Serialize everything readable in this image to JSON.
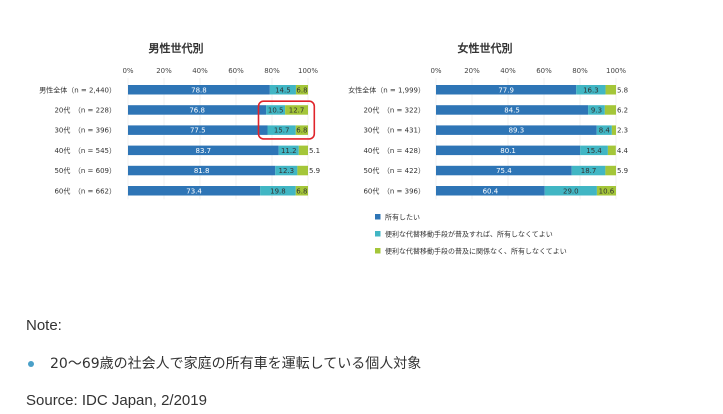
{
  "chart_data": [
    {
      "type": "bar",
      "orientation": "horizontal-stacked-percent",
      "title": "男性世代別",
      "axis_ticks": [
        "0%",
        "20%",
        "40%",
        "60%",
        "80%",
        "100%"
      ],
      "xlim": [
        0,
        100
      ],
      "categories": [
        "男性全体（n = 2,440）",
        "20代　（n = 228）",
        "30代　（n = 396）",
        "40代　（n = 545）",
        "50代　（n = 609）",
        "60代　（n = 662）"
      ],
      "series": [
        {
          "values": [
            78.8,
            76.8,
            77.5,
            83.7,
            81.8,
            73.4
          ]
        },
        {
          "values": [
            14.5,
            10.5,
            15.7,
            11.2,
            12.3,
            19.8
          ]
        },
        {
          "values": [
            6.8,
            12.7,
            6.8,
            5.1,
            5.9,
            6.8
          ]
        }
      ],
      "labels": [
        [
          "78.8",
          "14.5",
          "6.8"
        ],
        [
          "76.8",
          "10.5",
          "12.7"
        ],
        [
          "77.5",
          "15.7",
          "6.8"
        ],
        [
          "83.7",
          "11.2",
          "5.1"
        ],
        [
          "81.8",
          "12.3",
          "5.9"
        ],
        [
          "73.4",
          "19.8",
          "6.8"
        ]
      ],
      "highlighted_rows": [
        1,
        2
      ]
    },
    {
      "type": "bar",
      "orientation": "horizontal-stacked-percent",
      "title": "女性世代別",
      "axis_ticks": [
        "0%",
        "20%",
        "40%",
        "60%",
        "80%",
        "100%"
      ],
      "xlim": [
        0,
        100
      ],
      "categories": [
        "女性全体（n = 1,999）",
        "20代　（n = 322）",
        "30代　（n = 431）",
        "40代　（n = 428）",
        "50代　（n = 422）",
        "60代　（n = 396）"
      ],
      "series": [
        {
          "values": [
            77.9,
            84.5,
            89.3,
            80.1,
            75.4,
            60.4
          ]
        },
        {
          "values": [
            16.3,
            9.3,
            8.4,
            15.4,
            18.7,
            29.0
          ]
        },
        {
          "values": [
            5.8,
            6.2,
            2.3,
            4.4,
            5.9,
            10.6
          ]
        }
      ],
      "labels": [
        [
          "77.9",
          "16.3",
          "5.8"
        ],
        [
          "84.5",
          "9.3",
          "6.2"
        ],
        [
          "89.3",
          "8.4",
          "2.3"
        ],
        [
          "80.1",
          "15.4",
          "4.4"
        ],
        [
          "75.4",
          "18.7",
          "5.9"
        ],
        [
          "60.4",
          "29.0",
          "10.6"
        ]
      ]
    }
  ],
  "legend": [
    {
      "label": "所有したい",
      "color": "#2e75b6"
    },
    {
      "label": "便利な代替移動手段が普及すれば、所有しなくてよい",
      "color": "#41b6c4"
    },
    {
      "label": "便利な代替移動手段の普及に関係なく、所有しなくてよい",
      "color": "#a4c639"
    }
  ],
  "colors": {
    "series": [
      "#2e75b6",
      "#41b6c4",
      "#a4c639"
    ],
    "highlight": "#e0242b",
    "bullet": "#4aa0c8"
  },
  "note": {
    "heading": "Note:",
    "items": [
      "20～69歳の社会人で家庭の所有車を運転している個人対象"
    ]
  },
  "source": "Source: IDC Japan, 2/2019"
}
